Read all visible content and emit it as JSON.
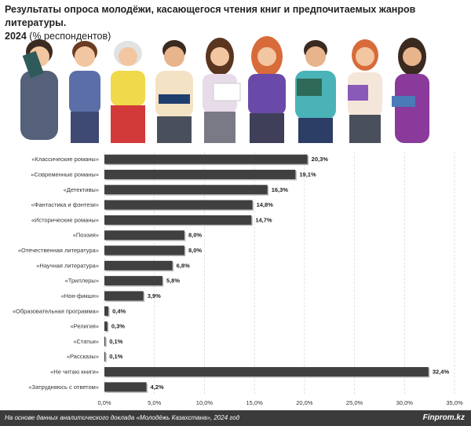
{
  "chart_data": {
    "type": "bar",
    "orientation": "horizontal",
    "title": "Результаты опроса молодёжи, касающегося чтения книг и предпочитаемых жанров литературы.",
    "year": "2024",
    "unit": "(% респондентов)",
    "categories": [
      "«Классические романы»",
      "«Современные романы»",
      "«Детективы»",
      "«Фантастика и фэнтези»",
      "«Исторические романы»",
      "«Поэзия»",
      "«Отечественная литература»",
      "«Научная литература»",
      "«Триллеры»",
      "«Нон-фикшн»",
      "«Образовательная программа»",
      "«Религия»",
      "«Статьи»",
      "«Рассказы»",
      "«Не читаю книги»",
      "«Затрудняюсь с ответом»"
    ],
    "values": [
      20.3,
      19.1,
      16.3,
      14.8,
      14.7,
      8.0,
      8.0,
      6.8,
      5.8,
      3.9,
      0.4,
      0.3,
      0.1,
      0.1,
      32.4,
      4.2
    ],
    "value_labels": [
      "20,3%",
      "19,1%",
      "16,3%",
      "14,8%",
      "14,7%",
      "8,0%",
      "8,0%",
      "6,8%",
      "5,8%",
      "3,9%",
      "0,4%",
      "0,3%",
      "0,1%",
      "0,1%",
      "32,4%",
      "4,2%"
    ],
    "color": "#404040",
    "xlim": [
      0,
      35
    ],
    "xticks": [
      {
        "value": 0,
        "label": "0,0%"
      },
      {
        "value": 5,
        "label": "5,0%"
      },
      {
        "value": 10,
        "label": "10,0%"
      },
      {
        "value": 15,
        "label": "15,0%"
      },
      {
        "value": 20,
        "label": "20,0%"
      },
      {
        "value": 25,
        "label": "25,0%"
      },
      {
        "value": 30,
        "label": "30,0%"
      },
      {
        "value": 35,
        "label": "35,0%"
      }
    ],
    "grid": true,
    "source": "На основе данных аналитического доклада «Молодёжь Казахстана», 2024 год",
    "brand": "Finprom.kz"
  }
}
